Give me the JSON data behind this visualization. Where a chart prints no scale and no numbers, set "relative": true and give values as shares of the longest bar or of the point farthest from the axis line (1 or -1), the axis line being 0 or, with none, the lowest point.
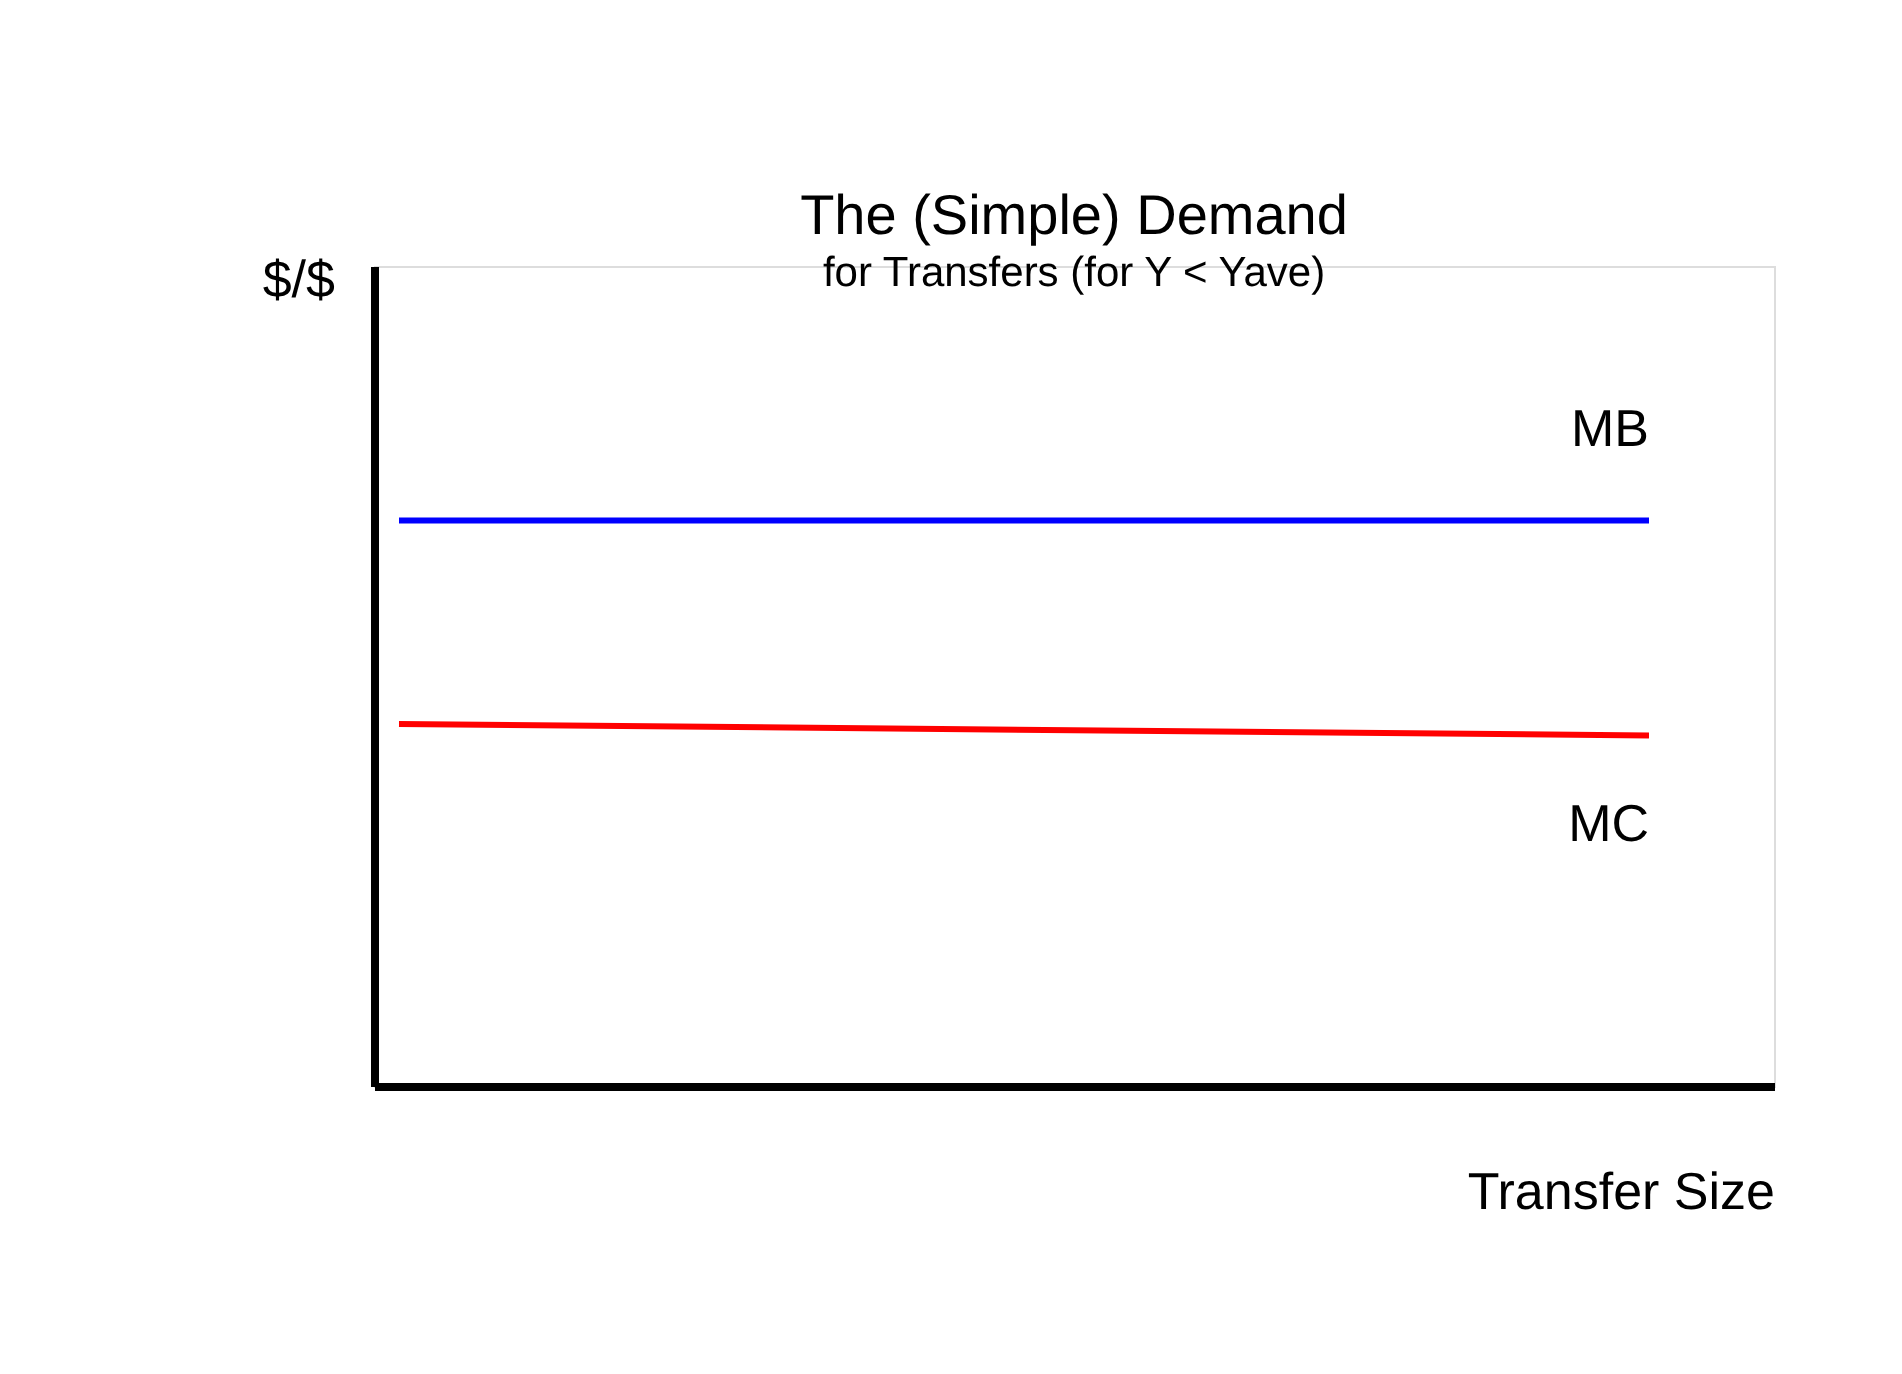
{
  "chart_data": {
    "type": "line",
    "title": "The (Simple) Demand",
    "subtitle": "for Transfers (for Y < Yave)",
    "xlabel": "Transfer Size",
    "ylabel": "$/$",
    "relative": true,
    "categories": [
      null,
      null
    ],
    "series": [
      {
        "name": "MB",
        "color": "#0000ff",
        "values": [
          1,
          1
        ]
      },
      {
        "name": "MC",
        "color": "#ff0000",
        "values": [
          0.64,
          0.62
        ]
      }
    ]
  }
}
